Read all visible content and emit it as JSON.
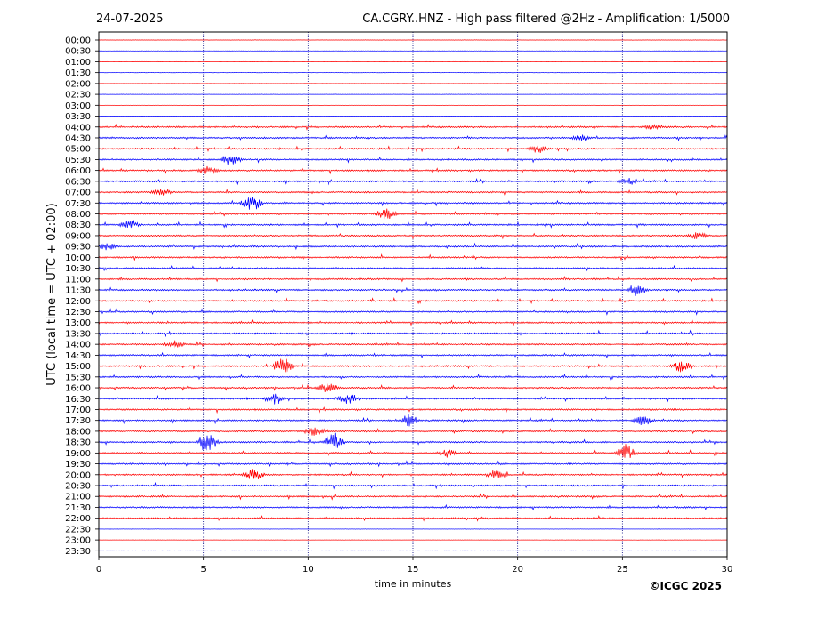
{
  "header": {
    "date": "24-07-2025",
    "title": "CA.CGRY..HNZ - High pass filtered @2Hz - Amplification: 1/5000"
  },
  "footer": {
    "copyright": "©ICGC 2025"
  },
  "colors": {
    "red_trace": "#ff0000",
    "blue_trace": "#0000ff",
    "grid": "#000080"
  },
  "chart_data": {
    "type": "line",
    "title": "CA.CGRY..HNZ - High pass filtered @2Hz - Amplification: 1/5000",
    "xlabel": "time in minutes",
    "ylabel": "UTC (local time = UTC + 02:00)",
    "xlim": [
      0,
      30
    ],
    "x_ticks": [
      0,
      5,
      10,
      15,
      20,
      25,
      30
    ],
    "row_labels": [
      "00:00",
      "00:30",
      "01:00",
      "01:30",
      "02:00",
      "02:30",
      "03:00",
      "03:30",
      "04:00",
      "04:30",
      "05:00",
      "05:30",
      "06:00",
      "06:30",
      "07:00",
      "07:30",
      "08:00",
      "08:30",
      "09:00",
      "09:30",
      "10:00",
      "10:30",
      "11:00",
      "11:30",
      "12:00",
      "12:30",
      "13:00",
      "13:30",
      "14:00",
      "14:30",
      "15:00",
      "15:30",
      "16:00",
      "16:30",
      "17:00",
      "17:30",
      "18:00",
      "18:30",
      "19:00",
      "19:30",
      "20:00",
      "20:30",
      "21:00",
      "21:30",
      "22:00",
      "22:30",
      "23:00",
      "23:30"
    ],
    "row_colors": "alternating red (even rows) / blue (odd rows)",
    "events": [
      {
        "row": "04:00",
        "minute": 26.5,
        "amplitude": 0.3
      },
      {
        "row": "04:30",
        "minute": 23.0,
        "amplitude": 0.3
      },
      {
        "row": "05:00",
        "minute": 21.0,
        "amplitude": 0.4
      },
      {
        "row": "05:30",
        "minute": 6.3,
        "amplitude": 0.6
      },
      {
        "row": "06:00",
        "minute": 5.2,
        "amplitude": 0.5
      },
      {
        "row": "06:30",
        "minute": 25.3,
        "amplitude": 0.35
      },
      {
        "row": "07:00",
        "minute": 3.0,
        "amplitude": 0.4
      },
      {
        "row": "07:30",
        "minute": 7.3,
        "amplitude": 0.9
      },
      {
        "row": "08:00",
        "minute": 13.7,
        "amplitude": 0.6
      },
      {
        "row": "08:30",
        "minute": 1.5,
        "amplitude": 0.4
      },
      {
        "row": "09:00",
        "minute": 28.6,
        "amplitude": 0.35
      },
      {
        "row": "09:30",
        "minute": 0.4,
        "amplitude": 0.4
      },
      {
        "row": "11:30",
        "minute": 25.7,
        "amplitude": 0.5
      },
      {
        "row": "14:00",
        "minute": 3.6,
        "amplitude": 0.4
      },
      {
        "row": "15:00",
        "minute": 8.8,
        "amplitude": 0.9
      },
      {
        "row": "15:00",
        "minute": 27.8,
        "amplitude": 0.6
      },
      {
        "row": "16:00",
        "minute": 10.9,
        "amplitude": 0.5
      },
      {
        "row": "16:30",
        "minute": 8.4,
        "amplitude": 0.7
      },
      {
        "row": "16:30",
        "minute": 11.9,
        "amplitude": 0.6
      },
      {
        "row": "17:30",
        "minute": 14.8,
        "amplitude": 0.6
      },
      {
        "row": "17:30",
        "minute": 26.0,
        "amplitude": 0.5
      },
      {
        "row": "18:00",
        "minute": 10.3,
        "amplitude": 0.5
      },
      {
        "row": "18:30",
        "minute": 5.2,
        "amplitude": 1.2
      },
      {
        "row": "18:30",
        "minute": 11.2,
        "amplitude": 0.9
      },
      {
        "row": "19:00",
        "minute": 16.6,
        "amplitude": 0.4
      },
      {
        "row": "19:00",
        "minute": 25.2,
        "amplitude": 0.8
      },
      {
        "row": "20:00",
        "minute": 7.4,
        "amplitude": 0.6
      },
      {
        "row": "20:00",
        "minute": 19.0,
        "amplitude": 0.5
      }
    ]
  }
}
